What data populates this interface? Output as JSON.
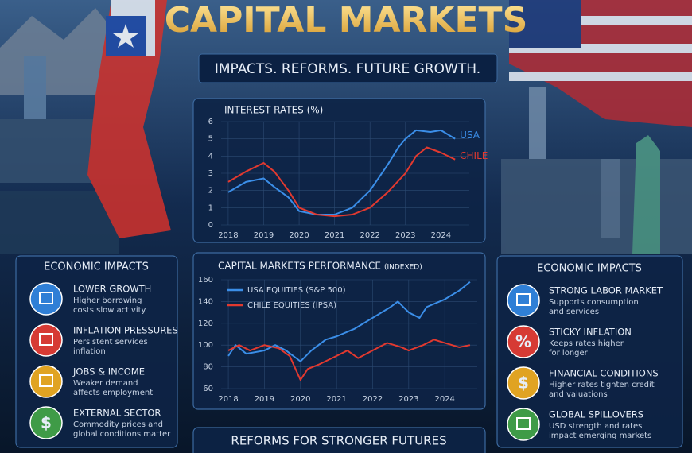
{
  "header": {
    "title": "CAPITAL MARKETS",
    "subtitle": "IMPACTS. REFORMS. FUTURE GROWTH."
  },
  "chart_data": [
    {
      "type": "line",
      "title": "INTEREST RATES (%)",
      "xlim": [
        2017.8,
        2024.8
      ],
      "xticks": [
        2018,
        2019,
        2020,
        2021,
        2022,
        2023,
        2024
      ],
      "ylim": [
        0,
        6
      ],
      "yticks": [
        0,
        1,
        2,
        3,
        4,
        5,
        6
      ],
      "grid": true,
      "legend": "line-end",
      "series": [
        {
          "name": "USA",
          "color": "#3b8ee8",
          "x": [
            2018,
            2018.5,
            2019,
            2019.3,
            2019.7,
            2020,
            2020.5,
            2021,
            2021.5,
            2022,
            2022.5,
            2022.8,
            2023,
            2023.3,
            2023.7,
            2024,
            2024.4
          ],
          "values": [
            1.9,
            2.5,
            2.7,
            2.2,
            1.6,
            0.8,
            0.6,
            0.6,
            1.0,
            2.0,
            3.5,
            4.5,
            5.0,
            5.5,
            5.4,
            5.5,
            5.0
          ]
        },
        {
          "name": "CHILE",
          "color": "#e2392f",
          "x": [
            2018,
            2018.5,
            2019,
            2019.3,
            2019.7,
            2020,
            2020.5,
            2021,
            2021.5,
            2022,
            2022.5,
            2023,
            2023.3,
            2023.6,
            2024,
            2024.4
          ],
          "values": [
            2.5,
            3.1,
            3.6,
            3.1,
            2.0,
            1.0,
            0.6,
            0.5,
            0.6,
            1.0,
            1.9,
            3.0,
            4.0,
            4.5,
            4.2,
            3.8
          ]
        }
      ]
    },
    {
      "type": "line",
      "title": "CAPITAL MARKETS PERFORMANCE",
      "subtitle": "(INDEXED)",
      "xlim": [
        2017.8,
        2024.9
      ],
      "xticks": [
        2018,
        2019,
        2020,
        2021,
        2022,
        2023,
        2024
      ],
      "ylim": [
        60,
        160
      ],
      "yticks": [
        60,
        80,
        100,
        120,
        140,
        160
      ],
      "grid": true,
      "legend": "top-left",
      "series": [
        {
          "name": "USA EQUITIES (S&P 500)",
          "color": "#3b8ee8",
          "x": [
            2018,
            2018.2,
            2018.5,
            2019,
            2019.3,
            2019.6,
            2020,
            2020.3,
            2020.7,
            2021,
            2021.5,
            2022,
            2022.5,
            2022.7,
            2023,
            2023.3,
            2023.5,
            2024,
            2024.4,
            2024.7
          ],
          "values": [
            90,
            100,
            92,
            95,
            100,
            95,
            85,
            95,
            105,
            108,
            115,
            125,
            135,
            140,
            130,
            125,
            135,
            142,
            150,
            158
          ]
        },
        {
          "name": "CHILE EQUITIES (IPSA)",
          "color": "#e2392f",
          "x": [
            2018,
            2018.3,
            2018.6,
            2019,
            2019.4,
            2019.7,
            2020,
            2020.2,
            2020.5,
            2021,
            2021.3,
            2021.6,
            2022,
            2022.4,
            2022.8,
            2023,
            2023.4,
            2023.7,
            2024,
            2024.4,
            2024.7
          ],
          "values": [
            95,
            100,
            95,
            100,
            97,
            90,
            68,
            78,
            82,
            90,
            95,
            88,
            95,
            102,
            98,
            95,
            100,
            105,
            102,
            98,
            100
          ]
        }
      ]
    }
  ],
  "left_panel": {
    "title": "ECONOMIC IMPACTS",
    "items": [
      {
        "title": "LOWER GROWTH",
        "color": "#2f7fd6",
        "text": [
          "Higher borrowing",
          "costs slow activity"
        ]
      },
      {
        "title": "INFLATION PRESSURES",
        "color": "#d63a34",
        "text": [
          "Persistent services",
          "inflation"
        ]
      },
      {
        "title": "JOBS & INCOME",
        "color": "#e0a322",
        "text": [
          "Weaker demand",
          "affects employment"
        ]
      },
      {
        "title": "EXTERNAL SECTOR",
        "color": "#3f9b47",
        "icon": "$",
        "text": [
          "Commodity prices and",
          "global conditions matter"
        ]
      }
    ]
  },
  "right_panel": {
    "title": "ECONOMIC IMPACTS",
    "items": [
      {
        "title": "STRONG LABOR MARKET",
        "color": "#2f7fd6",
        "text": [
          "Supports consumption",
          "and services"
        ]
      },
      {
        "title": "STICKY INFLATION",
        "color": "#d63a34",
        "icon": "%",
        "text": [
          "Keeps rates higher",
          "for longer"
        ]
      },
      {
        "title": "FINANCIAL CONDITIONS",
        "color": "#e0a322",
        "icon": "$",
        "text": [
          "Higher rates tighten credit",
          "and valuations"
        ]
      },
      {
        "title": "GLOBAL SPILLOVERS",
        "color": "#3f9b47",
        "text": [
          "USD strength and rates",
          "impact emerging markets"
        ]
      }
    ]
  },
  "footer": {
    "title": "REFORMS FOR STRONGER FUTURES"
  }
}
